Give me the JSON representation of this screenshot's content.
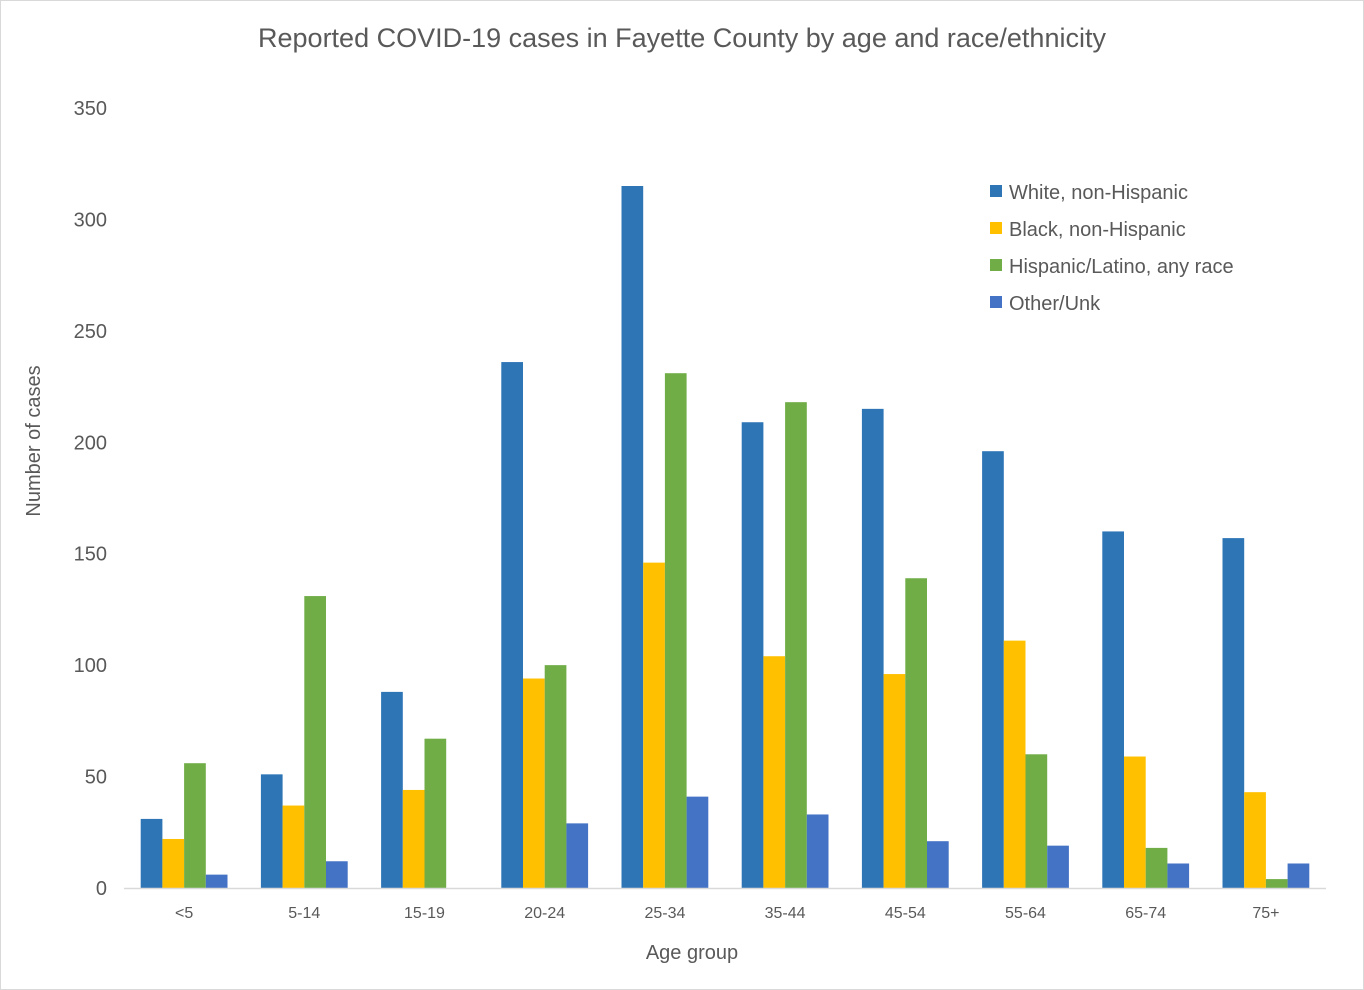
{
  "chart_data": {
    "type": "bar",
    "title": "Reported COVID-19 cases in Fayette County by age and race/ethnicity",
    "xlabel": "Age group",
    "ylabel": "Number of cases",
    "ylim": [
      0,
      350
    ],
    "yticks": [
      0,
      50,
      100,
      150,
      200,
      250,
      300,
      350
    ],
    "grid": false,
    "legend_position": "top-right",
    "categories": [
      "<5",
      "5-14",
      "15-19",
      "20-24",
      "25-34",
      "35-44",
      "45-54",
      "55-64",
      "65-74",
      "75+"
    ],
    "series": [
      {
        "name": "White, non-Hispanic",
        "color": "#2E75B6",
        "values": [
          31,
          51,
          88,
          236,
          315,
          209,
          215,
          196,
          160,
          157
        ]
      },
      {
        "name": "Black, non-Hispanic",
        "color": "#FFC000",
        "values": [
          22,
          37,
          44,
          94,
          146,
          104,
          96,
          111,
          59,
          43
        ]
      },
      {
        "name": "Hispanic/Latino, any race",
        "color": "#70AD47",
        "values": [
          56,
          131,
          67,
          100,
          231,
          218,
          139,
          60,
          18,
          4
        ]
      },
      {
        "name": "Other/Unk",
        "color": "#4472C4",
        "values": [
          6,
          12,
          0,
          29,
          41,
          33,
          21,
          19,
          11,
          11
        ]
      }
    ]
  }
}
